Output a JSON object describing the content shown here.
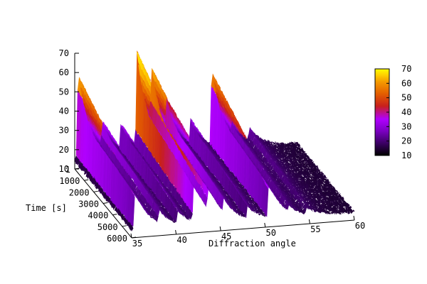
{
  "chart_data": {
    "type": "surface",
    "xlabel": "Diffraction angle",
    "ylabel": "Time [s]",
    "zlabel": "",
    "x_ticks": [
      35,
      40,
      45,
      50,
      55,
      60
    ],
    "y_ticks": [
      1,
      1000,
      2000,
      3000,
      4000,
      5000,
      6000
    ],
    "z_ticks": [
      10,
      20,
      30,
      40,
      50,
      60,
      70
    ],
    "xlim": [
      35,
      60
    ],
    "ylim": [
      1,
      6000
    ],
    "zlim": [
      10,
      70
    ],
    "colorbar": {
      "ticks": [
        10,
        20,
        30,
        40,
        50,
        60,
        70
      ],
      "range": [
        10,
        70
      ],
      "palette": [
        "#000000",
        "#3a0063",
        "#7a00c0",
        "#b000ff",
        "#c8201c",
        "#e35d00",
        "#f49a00",
        "#ffd100",
        "#ffff00"
      ]
    },
    "peaks": [
      {
        "angle": 35.4,
        "intensity": 60
      },
      {
        "angle": 38.1,
        "intensity": 34
      },
      {
        "angle": 40.2,
        "intensity": 32
      },
      {
        "angle": 42.0,
        "intensity": 68
      },
      {
        "angle": 43.6,
        "intensity": 61
      },
      {
        "angle": 45.3,
        "intensity": 43
      },
      {
        "angle": 48.0,
        "intensity": 31
      },
      {
        "angle": 50.4,
        "intensity": 56
      },
      {
        "angle": 52.6,
        "intensity": 28
      },
      {
        "angle": 54.6,
        "intensity": 24
      },
      {
        "angle": 56.6,
        "intensity": 16
      }
    ],
    "baseline_intensity": 14,
    "decay_with_time": 0.52
  }
}
